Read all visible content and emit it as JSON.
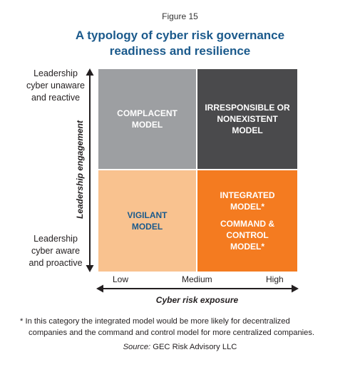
{
  "figure_label": "Figure 15",
  "title_line1": "A typology of cyber risk governance",
  "title_line2": "readiness and resilience",
  "y_axis": {
    "title": "Leadership engagement",
    "top_label": [
      "Leadership",
      "cyber unaware",
      "and reactive"
    ],
    "bottom_label": [
      "Leadership",
      "cyber aware",
      "and proactive"
    ]
  },
  "x_axis": {
    "title": "Cyber risk exposure",
    "ticks": [
      "Low",
      "Medium",
      "High"
    ]
  },
  "quadrants": {
    "complacent": [
      "COMPLACENT",
      "MODEL"
    ],
    "irresponsible": [
      "IRRESPONSIBLE OR",
      "NONEXISTENT",
      "MODEL"
    ],
    "vigilant": [
      "VIGILANT",
      "MODEL"
    ],
    "integrated": [
      "INTEGRATED",
      "MODEL*"
    ],
    "command": [
      "COMMAND &",
      "CONTROL",
      "MODEL*"
    ]
  },
  "colors": {
    "complacent": "#9d9fa2",
    "irresponsible": "#4a4a4c",
    "vigilant": "#f9c28f",
    "integrated": "#f47b20",
    "title": "#1b5a8c"
  },
  "footnote_line1": "* In this category the integrated model would be more likely for decentralized",
  "footnote_line2": "companies and the command and control model for more centralized companies.",
  "source_prefix": "Source:",
  "source_text": " GEC Risk Advisory LLC"
}
